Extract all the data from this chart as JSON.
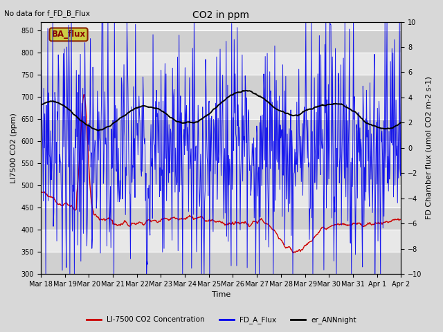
{
  "title": "CO2 in ppm",
  "top_left_text": "No data for f_FD_B_Flux",
  "ba_flux_label": "BA_flux",
  "xlabel": "Time",
  "ylabel_left": "LI7500 CO2 (ppm)",
  "ylabel_right": "FD Chamber flux (umol CO2 m-2 s-1)",
  "ylim_left": [
    300,
    870
  ],
  "ylim_right": [
    -10,
    10
  ],
  "yticks_left": [
    300,
    350,
    400,
    450,
    500,
    550,
    600,
    650,
    700,
    750,
    800,
    850
  ],
  "yticks_right": [
    -10,
    -8,
    -6,
    -4,
    -2,
    0,
    2,
    4,
    6,
    8,
    10
  ],
  "bg_color": "#d8d8d8",
  "plot_bg_color": "#e8e8e8",
  "red_color": "#cc0000",
  "blue_color": "#0000ee",
  "black_color": "#000000",
  "ba_flux_box_facecolor": "#cccc44",
  "ba_flux_box_edgecolor": "#882200",
  "ba_flux_text_color": "#880000",
  "legend_entries": [
    "LI-7500 CO2 Concentration",
    "FD_A_Flux",
    "er_ANNnight"
  ],
  "legend_colors": [
    "#cc0000",
    "#0000ee",
    "#000000"
  ],
  "tick_label_fontsize": 7,
  "axis_label_fontsize": 8,
  "title_fontsize": 10,
  "figwidth": 6.4,
  "figheight": 4.8,
  "dpi": 100
}
